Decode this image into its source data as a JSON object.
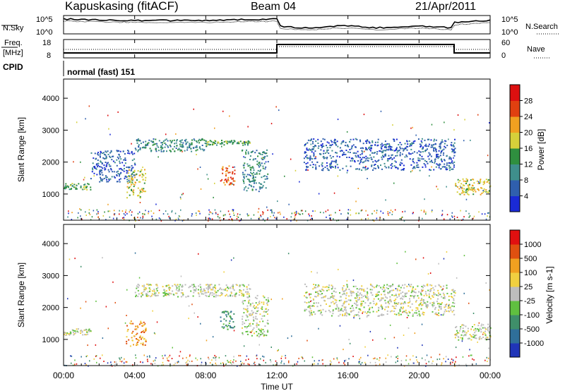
{
  "header": {
    "station": "Kapuskasing (fitACF)",
    "beam": "Beam 04",
    "date": "21/Apr/2011"
  },
  "noise_panel": {
    "left_label": "N.Sky",
    "right_label": "N.Search",
    "top_tick": "10^5",
    "bottom_tick": "10^0"
  },
  "freq_panel": {
    "left_label_1": "Freq.",
    "left_label_2": "[MHz]",
    "left_ticks": [
      "18",
      "8"
    ],
    "right_label": "Nave",
    "right_ticks": [
      "60",
      "0"
    ]
  },
  "cpid": {
    "label": "CPID",
    "value": "normal (fast) 151"
  },
  "chart_data": [
    {
      "type": "heatmap",
      "title": "",
      "quantity": "Power",
      "ylabel": "Slant Range [km]",
      "ylim": [
        180,
        4600
      ],
      "yticks": [
        "1000",
        "2000",
        "3000",
        "4000"
      ],
      "xlim_hours": [
        0,
        24
      ],
      "colorbar_label": "Power [dB]",
      "colorbar_ticks": [
        "4",
        "8",
        "12",
        "16",
        "20",
        "24",
        "28"
      ],
      "colors": [
        "#1a2ad6",
        "#2f5fae",
        "#3f8f8c",
        "#2f8f3f",
        "#d6d03a",
        "#f0a020",
        "#e04010",
        "#dd1010"
      ],
      "echo_bands": [
        {
          "t": [
            0.0,
            1.5
          ],
          "r": [
            1150,
            1350
          ],
          "level": 3
        },
        {
          "t": [
            1.5,
            4.0
          ],
          "r": [
            1400,
            2400
          ],
          "level": 1
        },
        {
          "t": [
            4.0,
            8.0
          ],
          "r": [
            2350,
            2750
          ],
          "level": 2
        },
        {
          "t": [
            8.0,
            10.5
          ],
          "r": [
            2550,
            2700
          ],
          "level": 3
        },
        {
          "t": [
            3.5,
            4.6
          ],
          "r": [
            900,
            1800
          ],
          "level": 4
        },
        {
          "t": [
            8.8,
            9.6
          ],
          "r": [
            1300,
            1900
          ],
          "level": 6
        },
        {
          "t": [
            10.0,
            11.5
          ],
          "r": [
            1100,
            2400
          ],
          "level": 2
        },
        {
          "t": [
            13.5,
            22.0
          ],
          "r": [
            1750,
            2750
          ],
          "level": 1
        },
        {
          "t": [
            22.0,
            24.0
          ],
          "r": [
            1000,
            1500
          ],
          "level": 4
        }
      ]
    },
    {
      "type": "heatmap",
      "title": "",
      "quantity": "Velocity",
      "ylabel": "Slant Range [km]",
      "ylim": [
        180,
        4600
      ],
      "yticks": [
        "1000",
        "2000",
        "3000",
        "4000"
      ],
      "xlim_hours": [
        0,
        24
      ],
      "colorbar_label": "Velocity [m s-1]",
      "colorbar_ticks": [
        "1000",
        "500",
        "100",
        "25",
        "-25",
        "-100",
        "-500",
        "-1000"
      ],
      "colors": [
        "#2035b8",
        "#2f6f9a",
        "#3f8f6a",
        "#60c040",
        "#bdbdbd",
        "#f0d040",
        "#f0a020",
        "#e05010",
        "#e01010"
      ],
      "echo_bands": [
        {
          "t": [
            0.0,
            1.5
          ],
          "r": [
            1150,
            1350
          ],
          "level": 4
        },
        {
          "t": [
            4.0,
            10.5
          ],
          "r": [
            2350,
            2750
          ],
          "level": 4
        },
        {
          "t": [
            3.5,
            4.6
          ],
          "r": [
            800,
            1600
          ],
          "level": 6
        },
        {
          "t": [
            8.8,
            9.6
          ],
          "r": [
            1300,
            1900
          ],
          "level": 2
        },
        {
          "t": [
            10.0,
            11.5
          ],
          "r": [
            1100,
            2400
          ],
          "level": 4
        },
        {
          "t": [
            13.5,
            22.0
          ],
          "r": [
            1750,
            2750
          ],
          "level": 4
        },
        {
          "t": [
            22.0,
            24.0
          ],
          "r": [
            1000,
            1500
          ],
          "level": 4
        }
      ]
    }
  ],
  "time_axis": {
    "ticks": [
      "00:00",
      "04:00",
      "08:00",
      "12:00",
      "16:00",
      "20:00",
      "00:00"
    ],
    "label": "Time UT"
  }
}
